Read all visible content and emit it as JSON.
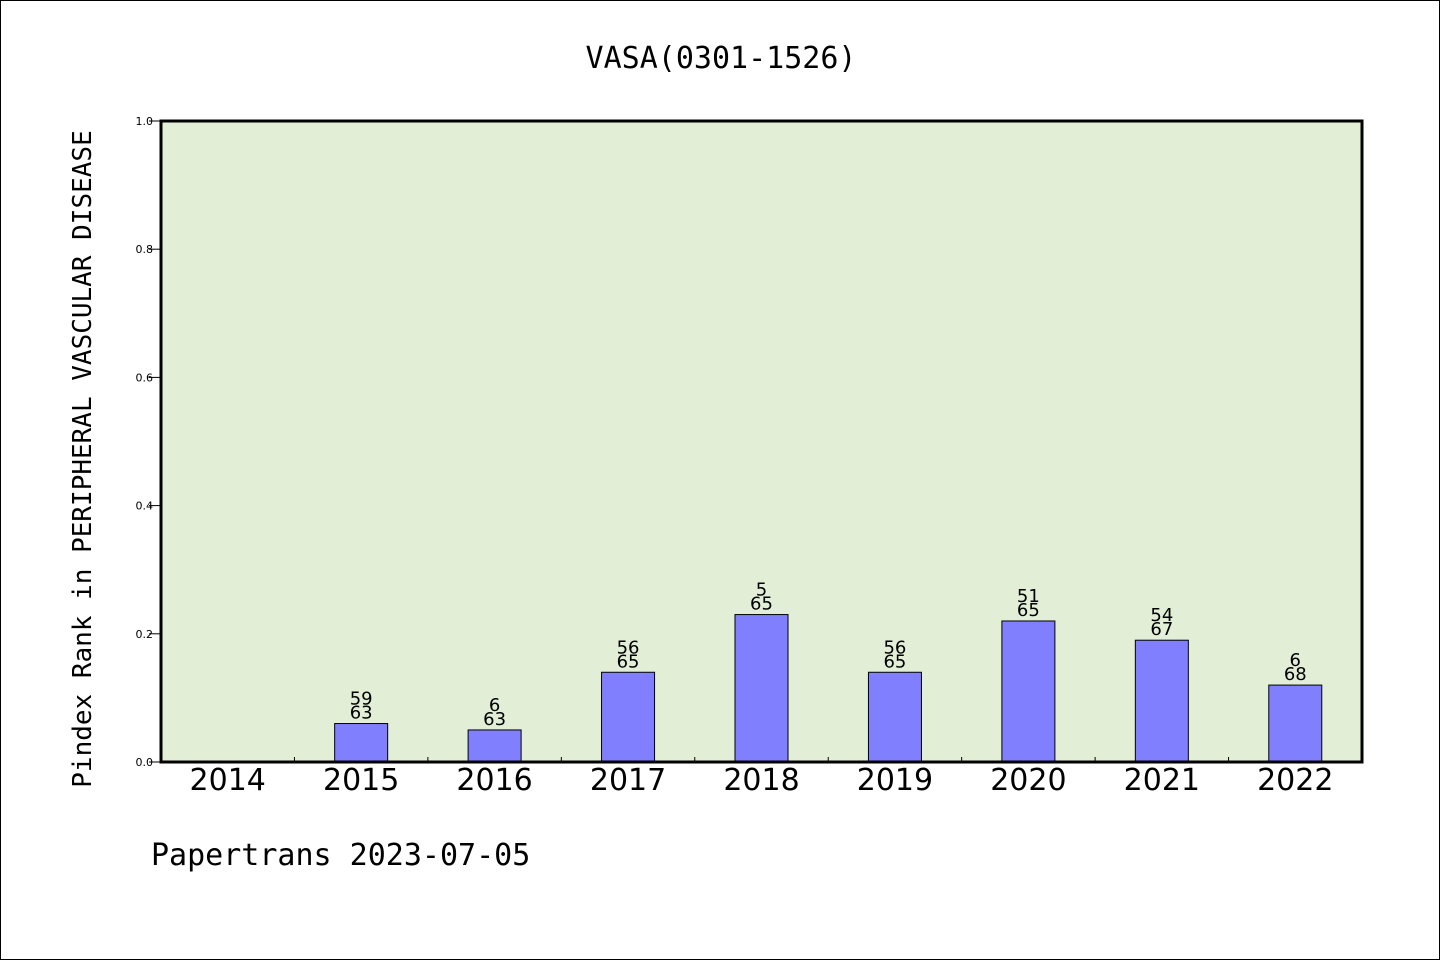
{
  "chart_data": {
    "type": "bar",
    "title": "VASA(0301-1526)",
    "ylabel": "Pindex Rank in PERIPHERAL VASCULAR DISEASE",
    "xlabel": "",
    "categories": [
      "2014",
      "2015",
      "2016",
      "2017",
      "2018",
      "2019",
      "2020",
      "2021",
      "2022"
    ],
    "values": [
      0,
      0.06,
      0.05,
      0.14,
      0.23,
      0.14,
      0.22,
      0.19,
      0.12
    ],
    "bar_labels": [
      null,
      [
        "59",
        "63"
      ],
      [
        "6",
        "63"
      ],
      [
        "56",
        "65"
      ],
      [
        "5",
        "65"
      ],
      [
        "56",
        "65"
      ],
      [
        "51",
        "65"
      ],
      [
        "54",
        "67"
      ],
      [
        "6",
        "68"
      ]
    ],
    "ylim": [
      0,
      1.0
    ],
    "yticks": [
      "0.0",
      "0.2",
      "0.4",
      "0.6",
      "0.8",
      "1.0"
    ],
    "grid": false,
    "legend": "none",
    "colors": {
      "plot_background": "#e2efd6",
      "bar_fill": "#8080ff",
      "bar_stroke": "#000000"
    }
  },
  "footer": {
    "text": "Papertrans 2023-07-05"
  }
}
